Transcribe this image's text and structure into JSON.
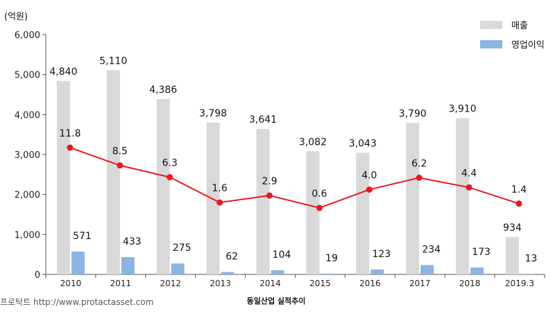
{
  "chart_data": {
    "type": "bar",
    "unit_label": "(억원)",
    "categories": [
      "2010",
      "2011",
      "2012",
      "2013",
      "2014",
      "2015",
      "2016",
      "2017",
      "2018",
      "2019.3"
    ],
    "series": [
      {
        "name": "매출",
        "type": "bar",
        "color": "#d9d9d9",
        "values": [
          4840,
          5110,
          4386,
          3798,
          3641,
          3082,
          3043,
          3790,
          3910,
          934
        ],
        "labels": [
          "4,840",
          "5,110",
          "4,386",
          "3,798",
          "3,641",
          "3,082",
          "3,043",
          "3,790",
          "3,910",
          "934"
        ]
      },
      {
        "name": "영업이익",
        "type": "bar",
        "color": "#8db4e2",
        "values": [
          571,
          433,
          275,
          62,
          104,
          19,
          123,
          234,
          173,
          13
        ],
        "labels": [
          "571",
          "433",
          "275",
          "62",
          "104",
          "19",
          "123",
          "234",
          "173",
          "13"
        ]
      },
      {
        "type": "line",
        "color": "#e8191e",
        "values": [
          11.8,
          8.5,
          6.3,
          1.6,
          2.9,
          0.6,
          4.0,
          6.2,
          4.4,
          1.4
        ],
        "labels": [
          "11.8",
          "8.5",
          "6.3",
          "1.6",
          "2.9",
          "0.6",
          "4.0",
          "6.2",
          "4.4",
          "1.4"
        ]
      }
    ],
    "ylim": [
      0,
      6000
    ],
    "yticks": [
      "0",
      "1,000",
      "2,000",
      "3,000",
      "4,000",
      "5,000",
      "6,000"
    ],
    "legend_position": "top-right",
    "grid": false
  },
  "footer": {
    "source": "프로탁트 http://www.protactasset.com",
    "caption": "동일산업 실적추이"
  }
}
